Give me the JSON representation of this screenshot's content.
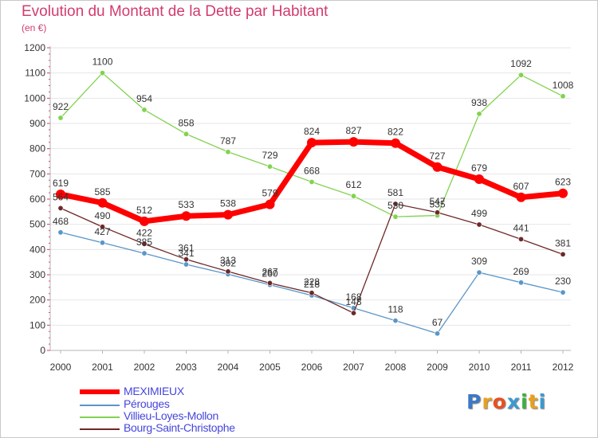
{
  "header": {
    "title": "Evolution du Montant de la Dette par Habitant",
    "unit": "(en €)"
  },
  "logo": {
    "text": "Proxiti",
    "letter_colors": [
      "#3c78c8",
      "#e8a020",
      "#e85020",
      "#3c9ad0",
      "#3cb040",
      "#e8a020",
      "#3c9ad0"
    ]
  },
  "colors": {
    "axis": "#b4b4b4",
    "grid": "#e6e6e6",
    "axis_ticks": "#e0306a",
    "text": "#333333"
  },
  "chart_data": {
    "type": "line",
    "title": "Evolution du Montant de la Dette par Habitant",
    "ylabel": "(en €)",
    "xlabel": "",
    "x": [
      "2000",
      "2001",
      "2002",
      "2003",
      "2004",
      "2005",
      "2006",
      "2007",
      "2008",
      "2009",
      "2010",
      "2011",
      "2012"
    ],
    "ylim": [
      0,
      1200
    ],
    "yticks": [
      0,
      100,
      200,
      300,
      400,
      500,
      600,
      700,
      800,
      900,
      1000,
      1100,
      1200
    ],
    "grid": "horizontal",
    "legend_position": "bottom-left",
    "series": [
      {
        "name": "MEXIMIEUX",
        "color": "#ff0000",
        "emphasis": true,
        "values": [
          619,
          585,
          512,
          533,
          538,
          579,
          824,
          827,
          822,
          727,
          679,
          607,
          623
        ]
      },
      {
        "name": "Pérouges",
        "color": "#5a96c8",
        "emphasis": false,
        "values": [
          468,
          427,
          385,
          341,
          302,
          260,
          218,
          168,
          118,
          67,
          309,
          269,
          230
        ]
      },
      {
        "name": "Villieu-Loyes-Mollon",
        "color": "#82d250",
        "emphasis": false,
        "values": [
          922,
          1100,
          954,
          858,
          787,
          729,
          668,
          612,
          530,
          535,
          938,
          1092,
          1008
        ]
      },
      {
        "name": "Bourg-Saint-Christophe",
        "color": "#6e2828",
        "emphasis": false,
        "values": [
          564,
          490,
          422,
          361,
          313,
          267,
          228,
          148,
          581,
          547,
          499,
          441,
          381
        ]
      }
    ]
  }
}
